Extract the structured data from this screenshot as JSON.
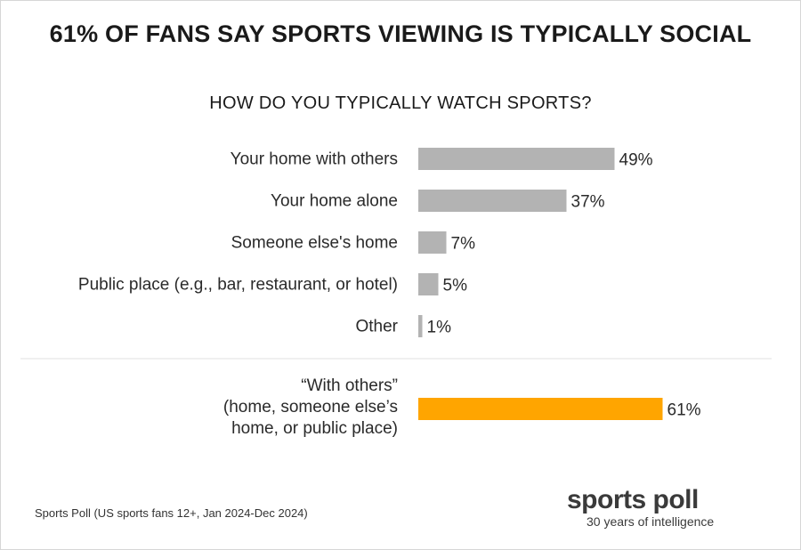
{
  "colors": {
    "primary_bar": "#b3b3b3",
    "highlight_bar": "#ffa500",
    "separator": "#e2e2e2"
  },
  "chart_data": {
    "type": "bar",
    "orientation": "horizontal",
    "title": "61% OF FANS SAY SPORTS VIEWING IS TYPICALLY SOCIAL",
    "subtitle": "HOW DO YOU TYPICALLY WATCH SPORTS?",
    "categories": [
      "Your home with others",
      "Your home alone",
      "Someone else's home",
      "Public place (e.g., bar, restaurant, or hotel)",
      "Other"
    ],
    "values": [
      49,
      37,
      7,
      5,
      1
    ],
    "value_labels": [
      "49%",
      "37%",
      "7%",
      "5%",
      "1%"
    ],
    "summary": {
      "label_lines": [
        "“With others”",
        "(home, someone else’s",
        "home, or public place)"
      ],
      "value": 61,
      "value_label": "61%"
    },
    "xlim": [
      0,
      100
    ],
    "grid": false,
    "legend": "none"
  },
  "footer": {
    "source": "Sports Poll (US sports fans 12+, Jan 2024-Dec 2024)",
    "logo_name": "sports poll",
    "logo_tagline": "30 years of intelligence"
  }
}
